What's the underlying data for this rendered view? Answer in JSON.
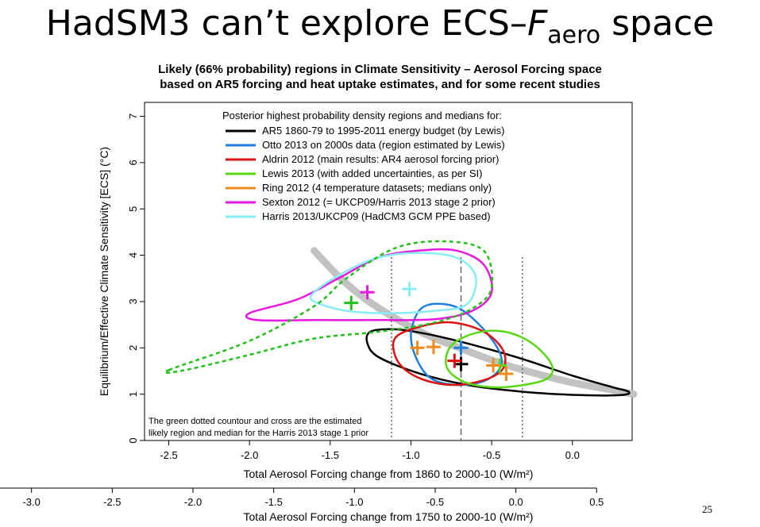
{
  "slide": {
    "title_main": "HadSM3 can’t explore ECS–",
    "title_italic": "F",
    "title_sub": "aero",
    "title_tail": " space",
    "number": "25"
  },
  "chart_data": {
    "type": "scatter",
    "title": "Likely (66% probability) regions in Climate Sensitivity – Aerosol Forcing space",
    "subtitle": "based on AR5 forcing and heat uptake estimates, and for some recent studies",
    "xlabel": "Total Aerosol Forcing change from 1860 to 2000-10 (W/m²)",
    "x2label": "Total Aerosol Forcing change from 1750 to 2000-10 (W/m²)",
    "ylabel": "Equilibrium/Effective Climate Sensitivity [ECS] (°C)",
    "xlim": [
      -2.65,
      0.37
    ],
    "ylim": [
      0,
      7.3
    ],
    "xticks": [
      "-2.5",
      "-2.0",
      "-1.5",
      "-1.0",
      "-0.5",
      "0.0"
    ],
    "x2ticks": [
      "-3.5",
      "-3.0",
      "-2.5",
      "-2.0",
      "-1.5",
      "-1.0",
      "-0.5",
      "0.0",
      "0.5"
    ],
    "x2ticks_values": [
      -3.5,
      -3.0,
      -2.5,
      -2.0,
      -1.5,
      -1.0,
      -0.5,
      0.0,
      0.5
    ],
    "x2_offset": -0.35,
    "yticks": [
      "0",
      "1",
      "2",
      "3",
      "4",
      "5",
      "6",
      "7"
    ],
    "legend_title": "Posterior highest probability density regions and medians for:",
    "legend_position": "top",
    "note_lines": [
      "The green dotted countour and cross are the estimated",
      "likely region and median for the Harris 2013 stage 1 prior"
    ],
    "vlines": [
      {
        "x": -1.12,
        "style": "dotted"
      },
      {
        "x": -0.69,
        "style": "dashed"
      },
      {
        "x": -0.31,
        "style": "dotted"
      }
    ],
    "gray_curve": [
      [
        -1.6,
        4.1
      ],
      [
        -1.45,
        3.55
      ],
      [
        -1.3,
        3.1
      ],
      [
        -1.15,
        2.75
      ],
      [
        -1.0,
        2.45
      ],
      [
        -0.85,
        2.2
      ],
      [
        -0.7,
        2.0
      ],
      [
        -0.55,
        1.8
      ],
      [
        -0.4,
        1.62
      ],
      [
        -0.2,
        1.42
      ],
      [
        0.0,
        1.25
      ],
      [
        0.2,
        1.12
      ],
      [
        0.38,
        1.0
      ]
    ],
    "series": [
      {
        "name": "AR5 1860-79 to 1995-2011 energy budget (by Lewis)",
        "color": "#000000",
        "style": "solid",
        "contour": [
          [
            -1.25,
            2.35
          ],
          [
            -1.1,
            2.4
          ],
          [
            -0.9,
            2.3
          ],
          [
            -0.6,
            2.05
          ],
          [
            -0.3,
            1.75
          ],
          [
            0.0,
            1.4
          ],
          [
            0.25,
            1.15
          ],
          [
            0.35,
            1.05
          ],
          [
            0.3,
            0.98
          ],
          [
            0.05,
            0.98
          ],
          [
            -0.3,
            1.05
          ],
          [
            -0.65,
            1.2
          ],
          [
            -0.95,
            1.45
          ],
          [
            -1.2,
            1.8
          ],
          [
            -1.27,
            2.1
          ]
        ],
        "median": [
          -0.69,
          1.65
        ]
      },
      {
        "name": "Otto 2013 on 2000s data (region estimated by Lewis)",
        "color": "#1f7fe0",
        "style": "solid",
        "contour": [
          [
            -0.95,
            2.8
          ],
          [
            -0.85,
            2.95
          ],
          [
            -0.7,
            2.85
          ],
          [
            -0.55,
            2.4
          ],
          [
            -0.45,
            1.9
          ],
          [
            -0.45,
            1.55
          ],
          [
            -0.55,
            1.28
          ],
          [
            -0.72,
            1.2
          ],
          [
            -0.88,
            1.35
          ],
          [
            -0.97,
            1.8
          ],
          [
            -1.0,
            2.3
          ]
        ],
        "median": [
          -0.69,
          2.0
        ]
      },
      {
        "name": "Aldrin 2012 (main results: AR4 aerosol forcing prior)",
        "color": "#e01010",
        "style": "solid",
        "contour": [
          [
            -1.1,
            2.2
          ],
          [
            -0.95,
            2.45
          ],
          [
            -0.75,
            2.55
          ],
          [
            -0.55,
            2.35
          ],
          [
            -0.43,
            1.95
          ],
          [
            -0.43,
            1.55
          ],
          [
            -0.55,
            1.3
          ],
          [
            -0.75,
            1.2
          ],
          [
            -0.95,
            1.35
          ],
          [
            -1.08,
            1.7
          ]
        ],
        "median": [
          -0.73,
          1.72
        ]
      },
      {
        "name": "Lewis 2013 (with added uncertainties, as per SI)",
        "color": "#5ad816",
        "style": "solid",
        "contour": [
          [
            -0.75,
            2.05
          ],
          [
            -0.6,
            2.32
          ],
          [
            -0.42,
            2.35
          ],
          [
            -0.25,
            2.1
          ],
          [
            -0.13,
            1.65
          ],
          [
            -0.15,
            1.35
          ],
          [
            -0.3,
            1.2
          ],
          [
            -0.5,
            1.15
          ],
          [
            -0.68,
            1.28
          ],
          [
            -0.78,
            1.6
          ]
        ],
        "median": [
          -0.45,
          1.62
        ]
      },
      {
        "name": "Ring 2012 (4 temperature datasets; medians only)",
        "color": "#f08a1c",
        "style": "none",
        "medians": [
          [
            -0.96,
            2.0
          ],
          [
            -0.86,
            2.02
          ],
          [
            -0.49,
            1.62
          ],
          [
            -0.41,
            1.44
          ]
        ]
      },
      {
        "name": "Sexton 2012 (= UKCP09/Harris 2013 stage 2 prior)",
        "color": "#e818e0",
        "style": "solid",
        "contour": [
          [
            -2.0,
            2.75
          ],
          [
            -1.7,
            3.05
          ],
          [
            -1.45,
            3.5
          ],
          [
            -1.2,
            3.95
          ],
          [
            -0.95,
            4.1
          ],
          [
            -0.72,
            4.1
          ],
          [
            -0.55,
            3.8
          ],
          [
            -0.5,
            3.2
          ],
          [
            -0.62,
            2.8
          ],
          [
            -0.85,
            2.62
          ],
          [
            -1.2,
            2.6
          ],
          [
            -1.6,
            2.6
          ],
          [
            -1.95,
            2.6
          ]
        ],
        "median": [
          -1.27,
          3.2
        ]
      },
      {
        "name": "Harris 2013/UKCP09 (HadCM3 GCM PPE based)",
        "color": "#88ecf4",
        "style": "solid",
        "contour": [
          [
            -1.6,
            3.2
          ],
          [
            -1.42,
            3.62
          ],
          [
            -1.2,
            3.95
          ],
          [
            -0.95,
            4.05
          ],
          [
            -0.72,
            3.95
          ],
          [
            -0.6,
            3.55
          ],
          [
            -0.65,
            2.95
          ],
          [
            -0.85,
            2.8
          ],
          [
            -1.15,
            2.75
          ],
          [
            -1.4,
            2.8
          ],
          [
            -1.6,
            3.0
          ]
        ],
        "median": [
          -1.01,
          3.27
        ]
      },
      {
        "name": "",
        "color": "#22c01a",
        "style": "dotted",
        "contour": [
          [
            -2.5,
            1.52
          ],
          [
            -2.0,
            2.15
          ],
          [
            -1.6,
            2.9
          ],
          [
            -1.4,
            3.5
          ],
          [
            -1.1,
            4.15
          ],
          [
            -0.8,
            4.3
          ],
          [
            -0.55,
            4.1
          ],
          [
            -0.5,
            3.3
          ],
          [
            -0.62,
            2.85
          ],
          [
            -0.85,
            2.55
          ],
          [
            -1.2,
            2.35
          ],
          [
            -1.6,
            2.2
          ],
          [
            -2.0,
            1.85
          ],
          [
            -2.4,
            1.52
          ]
        ],
        "median": [
          -1.37,
          2.97
        ]
      }
    ]
  }
}
